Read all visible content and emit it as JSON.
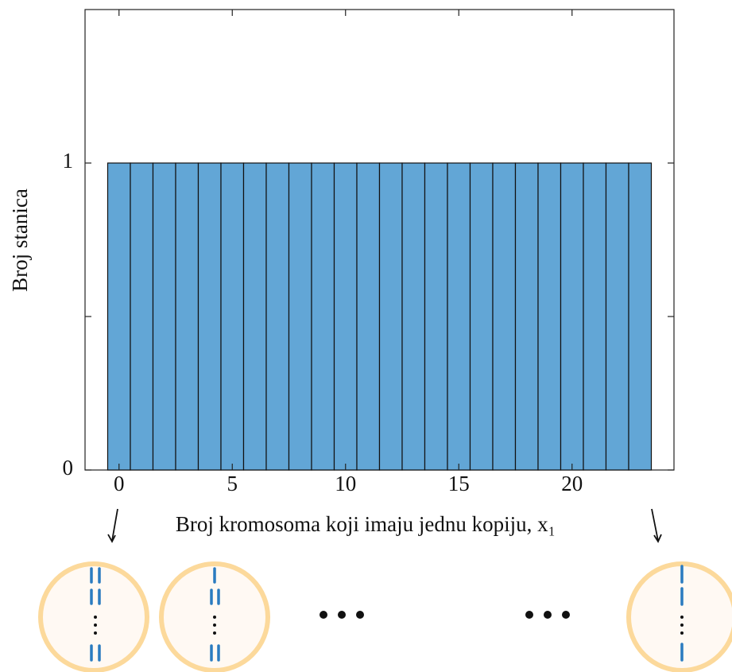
{
  "chart_data": {
    "type": "bar",
    "xlabel": "Broj kromosoma koji imaju jednu kopiju, x₁",
    "ylabel": "Broj stanica",
    "x": [
      0,
      1,
      2,
      3,
      4,
      5,
      6,
      7,
      8,
      9,
      10,
      11,
      12,
      13,
      14,
      15,
      16,
      17,
      18,
      19,
      20,
      21,
      22,
      23
    ],
    "values": [
      1,
      1,
      1,
      1,
      1,
      1,
      1,
      1,
      1,
      1,
      1,
      1,
      1,
      1,
      1,
      1,
      1,
      1,
      1,
      1,
      1,
      1,
      1,
      1
    ],
    "bar_width": 1,
    "color": "#62a6d6",
    "xlim": [
      -1.5,
      24.5
    ],
    "xticks": [
      0,
      5,
      10,
      15,
      20
    ],
    "ylim": [
      0,
      1.5
    ],
    "yticks": [
      0,
      1
    ],
    "yminor_ticks": [
      0.5
    ],
    "grid": false
  }
}
